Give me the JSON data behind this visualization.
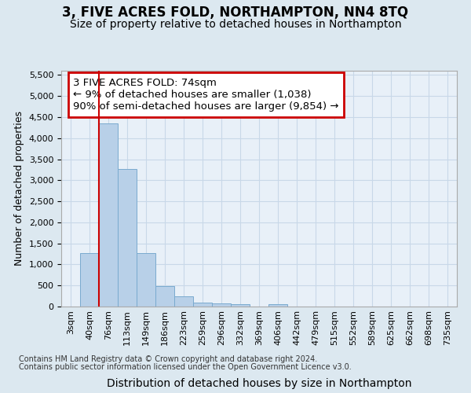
{
  "title": "3, FIVE ACRES FOLD, NORTHAMPTON, NN4 8TQ",
  "subtitle": "Size of property relative to detached houses in Northampton",
  "xlabel": "Distribution of detached houses by size in Northampton",
  "ylabel": "Number of detached properties",
  "bar_color": "#b8d0e8",
  "bar_edge_color": "#7aaacf",
  "grid_color": "#c8d8e8",
  "red_line_color": "#cc0000",
  "categories": [
    "3sqm",
    "40sqm",
    "76sqm",
    "113sqm",
    "149sqm",
    "186sqm",
    "223sqm",
    "259sqm",
    "296sqm",
    "332sqm",
    "369sqm",
    "406sqm",
    "442sqm",
    "479sqm",
    "515sqm",
    "552sqm",
    "589sqm",
    "625sqm",
    "662sqm",
    "698sqm",
    "735sqm"
  ],
  "values": [
    0,
    1275,
    4350,
    3275,
    1275,
    480,
    235,
    100,
    75,
    60,
    0,
    60,
    0,
    0,
    0,
    0,
    0,
    0,
    0,
    0,
    0
  ],
  "ylim": [
    0,
    5600
  ],
  "yticks": [
    0,
    500,
    1000,
    1500,
    2000,
    2500,
    3000,
    3500,
    4000,
    4500,
    5000,
    5500
  ],
  "red_line_x": 1.5,
  "annotation_line1": "3 FIVE ACRES FOLD: 74sqm",
  "annotation_line2": "← 9% of detached houses are smaller (1,038)",
  "annotation_line3": "90% of semi-detached houses are larger (9,854) →",
  "footnote1": "Contains HM Land Registry data © Crown copyright and database right 2024.",
  "footnote2": "Contains public sector information licensed under the Open Government Licence v3.0.",
  "bg_color": "#dce8f0",
  "plot_bg_color": "#e8f0f8",
  "title_fontsize": 12,
  "subtitle_fontsize": 10,
  "tick_fontsize": 8,
  "ylabel_fontsize": 9,
  "xlabel_fontsize": 10,
  "annotation_fontsize": 9.5,
  "footnote_fontsize": 7
}
